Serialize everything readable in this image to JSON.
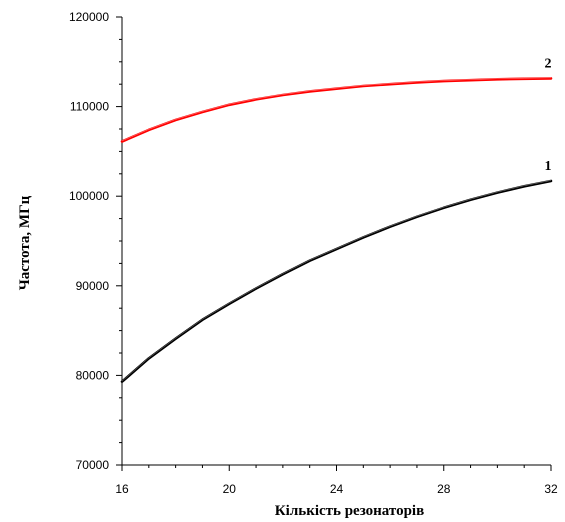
{
  "chart_data": {
    "type": "line",
    "title": "",
    "xlabel": "Кількість резонаторів",
    "ylabel": "Частота, МГц",
    "xlim": [
      16,
      32
    ],
    "ylim": [
      70000,
      120000
    ],
    "xticks": [
      16,
      20,
      24,
      28,
      32
    ],
    "yticks": [
      70000,
      80000,
      90000,
      100000,
      110000,
      120000
    ],
    "x_tick_labels": [
      "16",
      "20",
      "24",
      "28",
      "32"
    ],
    "y_tick_labels": [
      "70000",
      "80000",
      "90000",
      "100000",
      "110000",
      "120000"
    ],
    "grid": false,
    "series": [
      {
        "name": "1",
        "color": "#000000",
        "x": [
          16,
          17,
          18,
          19,
          20,
          21,
          22,
          23,
          24,
          25,
          26,
          27,
          28,
          29,
          30,
          31,
          32
        ],
        "values": [
          79300,
          81900,
          84100,
          86200,
          88000,
          89700,
          91300,
          92800,
          94100,
          95400,
          96600,
          97700,
          98700,
          99600,
          100400,
          101100,
          101700
        ]
      },
      {
        "name": "2",
        "color": "#ff0000",
        "x": [
          16,
          17,
          18,
          19,
          20,
          21,
          22,
          23,
          24,
          25,
          26,
          27,
          28,
          29,
          30,
          31,
          32
        ],
        "values": [
          106100,
          107400,
          108500,
          109400,
          110200,
          110800,
          111300,
          111700,
          112000,
          112300,
          112500,
          112700,
          112850,
          112950,
          113050,
          113100,
          113150
        ]
      }
    ]
  }
}
